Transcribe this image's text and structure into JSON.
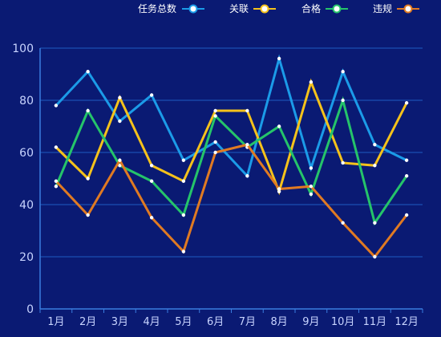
{
  "chart_data": {
    "type": "line",
    "categories": [
      "1月",
      "2月",
      "3月",
      "4月",
      "5月",
      "6月",
      "7月",
      "8月",
      "9月",
      "10月",
      "11月",
      "12月"
    ],
    "ylim": [
      0,
      100
    ],
    "yticks": [
      0,
      20,
      40,
      60,
      80,
      100
    ],
    "grid": true,
    "legend_position": "top-right",
    "series": [
      {
        "name": "任务总数",
        "color": "#1b9be8",
        "values": [
          78,
          91,
          72,
          82,
          57,
          64,
          51,
          96,
          54,
          91,
          63,
          57
        ]
      },
      {
        "name": "关联",
        "color": "#f5c21b",
        "values": [
          62,
          50,
          81,
          55,
          49,
          76,
          76,
          45,
          87,
          56,
          55,
          79
        ]
      },
      {
        "name": "合格",
        "color": "#25c46a",
        "values": [
          47,
          76,
          55,
          49,
          36,
          74,
          62,
          70,
          44,
          80,
          33,
          51
        ]
      },
      {
        "name": "违规",
        "color": "#e07a22",
        "values": [
          49,
          36,
          57,
          35,
          22,
          60,
          63,
          46,
          47,
          33,
          20,
          36
        ]
      }
    ]
  },
  "colors": {
    "background": "#0a1a73",
    "grid": "#1e5cc0",
    "axis": "#3a7de0",
    "tick_text": "#c8d4ff",
    "legend_text": "#ffffff"
  }
}
